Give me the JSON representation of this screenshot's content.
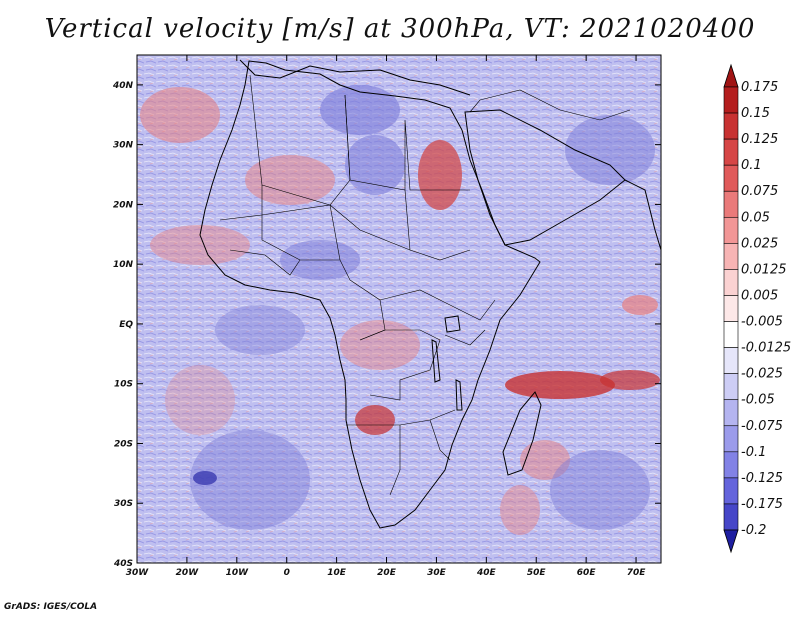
{
  "title": "Vertical velocity [m/s] at 300hPa, VT: 2021020400",
  "footer": "GrADS: IGES/COLA",
  "map": {
    "projection": "lat-lon",
    "lon_range": [
      -30,
      75
    ],
    "lat_range": [
      -40,
      45
    ],
    "lat_ticks": [
      {
        "value": 40,
        "label": "40N"
      },
      {
        "value": 30,
        "label": "30N"
      },
      {
        "value": 20,
        "label": "20N"
      },
      {
        "value": 10,
        "label": "10N"
      },
      {
        "value": 0,
        "label": "EQ"
      },
      {
        "value": -10,
        "label": "10S"
      },
      {
        "value": -20,
        "label": "20S"
      },
      {
        "value": -30,
        "label": "30S"
      },
      {
        "value": -40,
        "label": "40S"
      }
    ],
    "lon_ticks": [
      {
        "value": -30,
        "label": "30W"
      },
      {
        "value": -20,
        "label": "20W"
      },
      {
        "value": -10,
        "label": "10W"
      },
      {
        "value": 0,
        "label": "0"
      },
      {
        "value": 10,
        "label": "10E"
      },
      {
        "value": 20,
        "label": "20E"
      },
      {
        "value": 30,
        "label": "30E"
      },
      {
        "value": 40,
        "label": "40E"
      },
      {
        "value": 50,
        "label": "50E"
      },
      {
        "value": 60,
        "label": "60E"
      },
      {
        "value": 70,
        "label": "70E"
      }
    ]
  },
  "colorbar": {
    "levels": [
      {
        "label": "0.175",
        "color": "#b41e1e"
      },
      {
        "label": "0.15",
        "color": "#c83232"
      },
      {
        "label": "0.125",
        "color": "#d64646"
      },
      {
        "label": "0.1",
        "color": "#e05a5a"
      },
      {
        "label": "0.075",
        "color": "#ea7a7a"
      },
      {
        "label": "0.05",
        "color": "#f29696"
      },
      {
        "label": "0.025",
        "color": "#f7b4b4"
      },
      {
        "label": "0.0125",
        "color": "#fbd2d2"
      },
      {
        "label": "0.005",
        "color": "#fde8e8"
      },
      {
        "label": "-0.005",
        "color": "#ffffff"
      },
      {
        "label": "-0.0125",
        "color": "#e6e6fa"
      },
      {
        "label": "-0.025",
        "color": "#cdcdf5"
      },
      {
        "label": "-0.05",
        "color": "#b4b4f0"
      },
      {
        "label": "-0.075",
        "color": "#9b9beb"
      },
      {
        "label": "-0.1",
        "color": "#8282e6"
      },
      {
        "label": "-0.125",
        "color": "#6464dc"
      },
      {
        "label": "-0.175",
        "color": "#4646c8"
      },
      {
        "label": "-0.2",
        "color": "#2828b4"
      }
    ],
    "top_triangle_color": "#a01414",
    "bottom_triangle_color": "#1e1ea0"
  },
  "colors": {
    "field_base": "#b8b8ee",
    "positive": "#e88080",
    "negative": "#7c7cd8",
    "coast": "#000000"
  }
}
